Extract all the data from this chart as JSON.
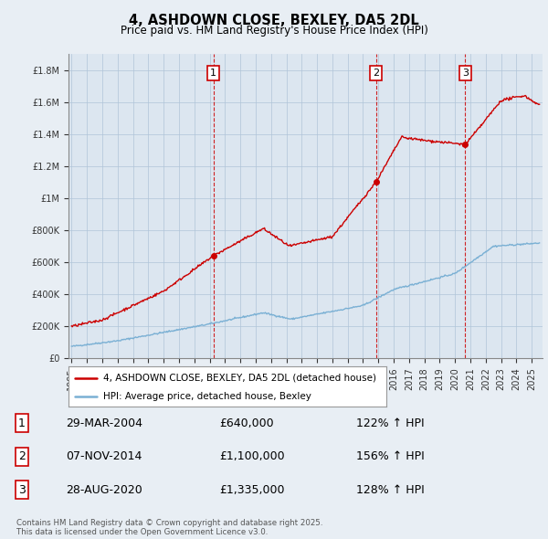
{
  "title": "4, ASHDOWN CLOSE, BEXLEY, DA5 2DL",
  "subtitle": "Price paid vs. HM Land Registry's House Price Index (HPI)",
  "ylim": [
    0,
    1900000
  ],
  "yticks": [
    0,
    200000,
    400000,
    600000,
    800000,
    1000000,
    1200000,
    1400000,
    1600000,
    1800000
  ],
  "ytick_labels": [
    "£0",
    "£200K",
    "£400K",
    "£600K",
    "£800K",
    "£1M",
    "£1.2M",
    "£1.4M",
    "£1.6M",
    "£1.8M"
  ],
  "hpi_color": "#7ab0d4",
  "price_color": "#cc0000",
  "sale_dates": [
    2004.24,
    2014.85,
    2020.66
  ],
  "sale_prices": [
    640000,
    1100000,
    1335000
  ],
  "sale_labels": [
    "1",
    "2",
    "3"
  ],
  "legend_price_label": "4, ASHDOWN CLOSE, BEXLEY, DA5 2DL (detached house)",
  "legend_hpi_label": "HPI: Average price, detached house, Bexley",
  "table_rows": [
    [
      "1",
      "29-MAR-2004",
      "£640,000",
      "122% ↑ HPI"
    ],
    [
      "2",
      "07-NOV-2014",
      "£1,100,000",
      "156% ↑ HPI"
    ],
    [
      "3",
      "28-AUG-2020",
      "£1,335,000",
      "128% ↑ HPI"
    ]
  ],
  "footnote": "Contains HM Land Registry data © Crown copyright and database right 2025.\nThis data is licensed under the Open Government Licence v3.0.",
  "background_color": "#e8eef4",
  "plot_bg_color": "#dce6f0",
  "grid_color": "#b0c4d8"
}
